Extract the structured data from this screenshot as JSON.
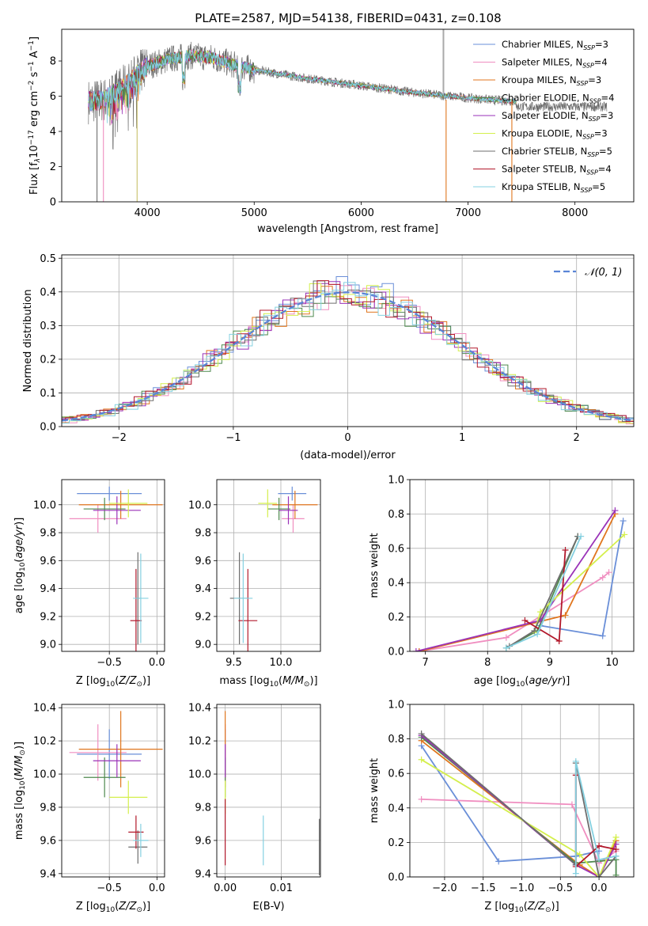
{
  "figure": {
    "title": "PLATE=2587, MJD=54138, FIBERID=0431, z=0.108"
  },
  "colors": {
    "Chabrier MILES": "#6a8fd8",
    "Salpeter MILES": "#f08ec0",
    "Kroupa MILES": "#e0761e",
    "Chabrier ELODIE": "#4f8a4f",
    "Salpeter ELODIE": "#9a32b8",
    "Kroupa ELODIE": "#d4ef4c",
    "Chabrier STELIB": "#6e6e6e",
    "Salpeter STELIB": "#b2182b",
    "Kroupa STELIB": "#84d0e0"
  },
  "chart_data": [
    {
      "id": "spectrum",
      "type": "line",
      "xlabel": "wavelength [Angstrom, rest frame]",
      "ylabel": "Flux [f_λ 10^-17 erg cm^-2 s^-1 A^-1]",
      "xlim": [
        3200,
        8550
      ],
      "ylim": [
        0,
        9.8
      ],
      "xticks": [
        4000,
        5000,
        6000,
        7000,
        8000
      ],
      "yticks": [
        0,
        2,
        4,
        6,
        8
      ],
      "grid": false,
      "legend_position": "upper-right",
      "legend": [
        "Chabrier MILES, N_SSP=3",
        "Salpeter MILES, N_SSP=4",
        "Kroupa MILES, N_SSP=3",
        "Chabrier ELODIE, N_SSP=4",
        "Salpeter ELODIE, N_SSP=3",
        "Kroupa ELODIE, N_SSP=3",
        "Chabrier STELIB, N_SSP=5",
        "Salpeter STELIB, N_SSP=4",
        "Kroupa STELIB, N_SSP=5"
      ],
      "continuum": {
        "x": [
          3450,
          3600,
          3800,
          4000,
          4200,
          4400,
          4600,
          4800,
          5000,
          5200,
          5500,
          6000,
          6500,
          7000,
          7200,
          7450
        ],
        "y": [
          5.7,
          5.8,
          6.6,
          7.7,
          8.1,
          8.3,
          8.2,
          7.8,
          7.5,
          7.3,
          7.0,
          6.6,
          6.2,
          5.9,
          5.8,
          5.7
        ]
      },
      "data_extent": {
        "x_start": 3450,
        "x_end": 8300
      },
      "spikes_down": [
        3530,
        3590,
        3905,
        6795,
        7410
      ]
    },
    {
      "id": "residuals",
      "type": "line",
      "xlabel": "(data-model)/error",
      "ylabel": "Normed distribution",
      "xlim": [
        -2.5,
        2.5
      ],
      "ylim": [
        0,
        0.51
      ],
      "xticks": [
        -2,
        -1,
        0,
        1,
        2
      ],
      "xtick_labels": [
        "−2",
        "−1",
        "0",
        "1",
        "2"
      ],
      "yticks": [
        0.0,
        0.1,
        0.2,
        0.3,
        0.4,
        0.5
      ],
      "ytick_labels": [
        "0.0",
        "0.1",
        "0.2",
        "0.3",
        "0.4",
        "0.5"
      ],
      "grid": true,
      "legend_position": "upper-right",
      "legend": [
        "𝒩(0, 1)"
      ],
      "normal_reference": {
        "mean": 0,
        "sigma": 1
      },
      "histogram_bin_width": 0.1
    },
    {
      "id": "age-vs-Z",
      "type": "scatter",
      "xlabel": "Z [log10(Z/Z⊙)]",
      "ylabel": "age [log10(age/yr)]",
      "xlim": [
        -1.0,
        0.08
      ],
      "ylim": [
        8.95,
        10.18
      ],
      "xticks": [
        -0.5,
        0.0
      ],
      "xtick_labels": [
        "−0.5",
        "0.0"
      ],
      "yticks": [
        9.0,
        9.2,
        9.4,
        9.6,
        9.8,
        10.0
      ],
      "ytick_labels": [
        "9.0",
        "9.2",
        "9.4",
        "9.6",
        "9.8",
        "10.0"
      ],
      "grid": true,
      "points": [
        {
          "model": "Chabrier MILES",
          "x": -0.5,
          "xerr": 0.34,
          "y": 10.08,
          "yerr": 0.05
        },
        {
          "model": "Salpeter MILES",
          "x": -0.62,
          "xerr": 0.3,
          "y": 9.9,
          "yerr": 0.1
        },
        {
          "model": "Kroupa MILES",
          "x": -0.38,
          "xerr": 0.44,
          "y": 10.0,
          "yerr": 0.1
        },
        {
          "model": "Chabrier ELODIE",
          "x": -0.55,
          "xerr": 0.22,
          "y": 9.97,
          "yerr": 0.08
        },
        {
          "model": "Salpeter ELODIE",
          "x": -0.42,
          "xerr": 0.25,
          "y": 9.96,
          "yerr": 0.1
        },
        {
          "model": "Kroupa ELODIE",
          "x": -0.3,
          "xerr": 0.2,
          "y": 10.01,
          "yerr": 0.1
        },
        {
          "model": "Chabrier STELIB",
          "x": -0.2,
          "xerr": 0.02,
          "y": 9.33,
          "yerr": 0.33
        },
        {
          "model": "Salpeter STELIB",
          "x": -0.22,
          "xerr": 0.06,
          "y": 9.17,
          "yerr": 0.37
        },
        {
          "model": "Kroupa STELIB",
          "x": -0.17,
          "xerr": 0.08,
          "y": 9.33,
          "yerr": 0.32
        }
      ]
    },
    {
      "id": "age-vs-mass",
      "type": "scatter",
      "xlabel": "mass [log10(M/M⊙)]",
      "xlim": [
        9.32,
        10.42
      ],
      "ylim": [
        8.95,
        10.18
      ],
      "xticks": [
        9.5,
        10.0
      ],
      "xtick_labels": [
        "9.5",
        "10.0"
      ],
      "yticks": [
        9.0,
        9.2,
        9.4,
        9.6,
        9.8,
        10.0
      ],
      "ytick_labels": [
        "9.0",
        "9.2",
        "9.4",
        "9.6",
        "9.8",
        "10.0"
      ],
      "grid": true,
      "points": [
        {
          "model": "Chabrier MILES",
          "x": 10.12,
          "xerr": 0.15,
          "y": 10.08,
          "yerr": 0.05
        },
        {
          "model": "Salpeter MILES",
          "x": 10.13,
          "xerr": 0.12,
          "y": 9.9,
          "yerr": 0.1
        },
        {
          "model": "Kroupa MILES",
          "x": 10.15,
          "xerr": 0.24,
          "y": 10.0,
          "yerr": 0.1
        },
        {
          "model": "Chabrier ELODIE",
          "x": 9.98,
          "xerr": 0.12,
          "y": 9.97,
          "yerr": 0.08
        },
        {
          "model": "Salpeter ELODIE",
          "x": 10.08,
          "xerr": 0.1,
          "y": 9.96,
          "yerr": 0.1
        },
        {
          "model": "Kroupa ELODIE",
          "x": 9.86,
          "xerr": 0.1,
          "y": 10.01,
          "yerr": 0.1
        },
        {
          "model": "Chabrier STELIB",
          "x": 9.56,
          "xerr": 0.1,
          "y": 9.33,
          "yerr": 0.33
        },
        {
          "model": "Salpeter STELIB",
          "x": 9.65,
          "xerr": 0.1,
          "y": 9.17,
          "yerr": 0.37
        },
        {
          "model": "Kroupa STELIB",
          "x": 9.6,
          "xerr": 0.1,
          "y": 9.33,
          "yerr": 0.32
        }
      ]
    },
    {
      "id": "massweight-vs-age",
      "type": "line",
      "xlabel": "age [log10(age/yr)]",
      "ylabel": "mass weight",
      "xlim": [
        6.75,
        10.35
      ],
      "ylim": [
        0.0,
        1.0
      ],
      "xticks": [
        7,
        8,
        9,
        10
      ],
      "xtick_labels": [
        "7",
        "8",
        "9",
        "10"
      ],
      "yticks": [
        0.0,
        0.2,
        0.4,
        0.6,
        0.8,
        1.0
      ],
      "ytick_labels": [
        "0.0",
        "0.2",
        "0.4",
        "0.6",
        "0.8",
        "1.0"
      ],
      "grid": true,
      "series": [
        {
          "model": "Chabrier MILES",
          "x": [
            8.85,
            9.85,
            10.18
          ],
          "y": [
            0.15,
            0.09,
            0.76
          ]
        },
        {
          "model": "Salpeter MILES",
          "x": [
            6.9,
            8.3,
            9.85,
            9.95
          ],
          "y": [
            0.0,
            0.08,
            0.43,
            0.46
          ]
        },
        {
          "model": "Kroupa MILES",
          "x": [
            6.9,
            9.25,
            10.05
          ],
          "y": [
            0.0,
            0.21,
            0.8
          ]
        },
        {
          "model": "Chabrier ELODIE",
          "x": [
            8.3,
            8.8,
            9.45
          ],
          "y": [
            0.02,
            0.12,
            0.67
          ]
        },
        {
          "model": "Salpeter ELODIE",
          "x": [
            6.85,
            8.85,
            10.05
          ],
          "y": [
            0.0,
            0.18,
            0.82
          ]
        },
        {
          "model": "Kroupa ELODIE",
          "x": [
            8.75,
            8.85,
            10.2
          ],
          "y": [
            0.11,
            0.23,
            0.68
          ]
        },
        {
          "model": "Chabrier STELIB",
          "x": [
            8.35,
            8.75,
            9.45
          ],
          "y": [
            0.03,
            0.12,
            0.67
          ]
        },
        {
          "model": "Salpeter STELIB",
          "x": [
            8.6,
            9.15,
            9.25
          ],
          "y": [
            0.18,
            0.06,
            0.59
          ]
        },
        {
          "model": "Kroupa STELIB",
          "x": [
            8.3,
            8.8,
            9.5
          ],
          "y": [
            0.02,
            0.1,
            0.67
          ]
        }
      ]
    },
    {
      "id": "mass-vs-Z",
      "type": "scatter",
      "xlabel": "Z [log10(Z/Z⊙)]",
      "ylabel": "mass [log10(M/M⊙)]",
      "xlim": [
        -1.0,
        0.08
      ],
      "ylim": [
        9.38,
        10.42
      ],
      "xticks": [
        -0.5,
        0.0
      ],
      "xtick_labels": [
        "−0.5",
        "0.0"
      ],
      "yticks": [
        9.4,
        9.6,
        9.8,
        10.0,
        10.2,
        10.4
      ],
      "ytick_labels": [
        "9.4",
        "9.6",
        "9.8",
        "10.0",
        "10.2",
        "10.4"
      ],
      "grid": true,
      "points": [
        {
          "model": "Chabrier MILES",
          "x": -0.5,
          "xerr": 0.34,
          "y": 10.12,
          "yerr": 0.15
        },
        {
          "model": "Salpeter MILES",
          "x": -0.62,
          "xerr": 0.3,
          "y": 10.13,
          "yerr": 0.17
        },
        {
          "model": "Kroupa MILES",
          "x": -0.38,
          "xerr": 0.44,
          "y": 10.15,
          "yerr": 0.23
        },
        {
          "model": "Chabrier ELODIE",
          "x": -0.55,
          "xerr": 0.22,
          "y": 9.98,
          "yerr": 0.12
        },
        {
          "model": "Salpeter ELODIE",
          "x": -0.42,
          "xerr": 0.25,
          "y": 10.08,
          "yerr": 0.1
        },
        {
          "model": "Kroupa ELODIE",
          "x": -0.3,
          "xerr": 0.2,
          "y": 9.86,
          "yerr": 0.1
        },
        {
          "model": "Chabrier STELIB",
          "x": -0.2,
          "xerr": 0.1,
          "y": 9.56,
          "yerr": 0.1
        },
        {
          "model": "Salpeter STELIB",
          "x": -0.22,
          "xerr": 0.08,
          "y": 9.65,
          "yerr": 0.1
        },
        {
          "model": "Kroupa STELIB",
          "x": -0.17,
          "xerr": 0.08,
          "y": 9.6,
          "yerr": 0.1
        }
      ]
    },
    {
      "id": "mass-vs-ebv",
      "type": "scatter",
      "xlabel": "E(B-V)",
      "xlim": [
        -0.0015,
        0.017
      ],
      "ylim": [
        9.38,
        10.42
      ],
      "xticks": [
        0.0,
        0.01
      ],
      "xtick_labels": [
        "0.00",
        "0.01"
      ],
      "yticks": [
        9.4,
        9.6,
        9.8,
        10.0,
        10.2,
        10.4
      ],
      "ytick_labels": [
        "9.4",
        "9.6",
        "9.8",
        "10.0",
        "10.2",
        "10.4"
      ],
      "grid": true,
      "points": [
        {
          "model": "Chabrier MILES",
          "x": 0.0,
          "y": 10.12,
          "yerr": 0.15
        },
        {
          "model": "Salpeter MILES",
          "x": 0.0,
          "y": 10.13,
          "yerr": 0.17
        },
        {
          "model": "Kroupa MILES",
          "x": 0.0,
          "y": 10.15,
          "yerr": 0.23
        },
        {
          "model": "Chabrier ELODIE",
          "x": 0.0,
          "y": 9.98,
          "yerr": 0.12
        },
        {
          "model": "Salpeter ELODIE",
          "x": 0.0,
          "y": 10.08,
          "yerr": 0.1
        },
        {
          "model": "Kroupa ELODIE",
          "x": 0.0,
          "y": 9.86,
          "yerr": 0.1
        },
        {
          "model": "Chabrier STELIB",
          "x": 0.0168,
          "y": 9.56,
          "yerr": 0.17
        },
        {
          "model": "Salpeter STELIB",
          "x": 0.0,
          "y": 9.65,
          "yerr": 0.2
        },
        {
          "model": "Kroupa STELIB",
          "x": 0.0068,
          "y": 9.6,
          "yerr": 0.15
        }
      ]
    },
    {
      "id": "massweight-vs-Z",
      "type": "line",
      "xlabel": "Z [log10(Z/Z⊙)]",
      "ylabel": "mass weight",
      "xlim": [
        -2.45,
        0.45
      ],
      "ylim": [
        0.0,
        1.0
      ],
      "xticks": [
        -2.0,
        -1.5,
        -1.0,
        -0.5,
        0.0
      ],
      "xtick_labels": [
        "−2.0",
        "−1.5",
        "−1.0",
        "−0.5",
        "0.0"
      ],
      "yticks": [
        0.0,
        0.2,
        0.4,
        0.6,
        0.8,
        1.0
      ],
      "ytick_labels": [
        "0.0",
        "0.2",
        "0.4",
        "0.6",
        "0.8",
        "1.0"
      ],
      "grid": true,
      "series": [
        {
          "model": "Chabrier MILES",
          "x": [
            -2.3,
            -1.3,
            -0.3,
            0.0
          ],
          "y": [
            0.76,
            0.09,
            0.12,
            0.15
          ]
        },
        {
          "model": "Salpeter MILES",
          "x": [
            -2.3,
            -0.35,
            0.0,
            0.22
          ],
          "y": [
            0.45,
            0.42,
            0.08,
            0.15
          ]
        },
        {
          "model": "Kroupa MILES",
          "x": [
            -2.3,
            -0.25,
            0.0,
            0.22
          ],
          "y": [
            0.79,
            0.07,
            0.0,
            0.21
          ]
        },
        {
          "model": "Chabrier ELODIE",
          "x": [
            -2.3,
            -0.3,
            0.22,
            0.22
          ],
          "y": [
            0.81,
            0.08,
            0.1,
            0.01
          ]
        },
        {
          "model": "Salpeter ELODIE",
          "x": [
            -2.3,
            -0.3,
            0.0,
            0.22
          ],
          "y": [
            0.82,
            0.07,
            0.0,
            0.19
          ]
        },
        {
          "model": "Kroupa ELODIE",
          "x": [
            -2.3,
            -0.25,
            0.0,
            0.22
          ],
          "y": [
            0.68,
            0.13,
            0.0,
            0.23
          ]
        },
        {
          "model": "Chabrier STELIB",
          "x": [
            -2.3,
            -0.3,
            -0.3,
            0.0,
            0.22
          ],
          "y": [
            0.83,
            0.07,
            0.66,
            0.0,
            0.12
          ]
        },
        {
          "model": "Salpeter STELIB",
          "x": [
            -0.3,
            -0.3,
            0.0,
            0.22
          ],
          "y": [
            0.59,
            0.06,
            0.18,
            0.16
          ]
        },
        {
          "model": "Kroupa STELIB",
          "x": [
            -0.3,
            -0.3,
            0.0,
            0.22
          ],
          "y": [
            0.02,
            0.67,
            0.1,
            0.12
          ]
        }
      ]
    }
  ]
}
